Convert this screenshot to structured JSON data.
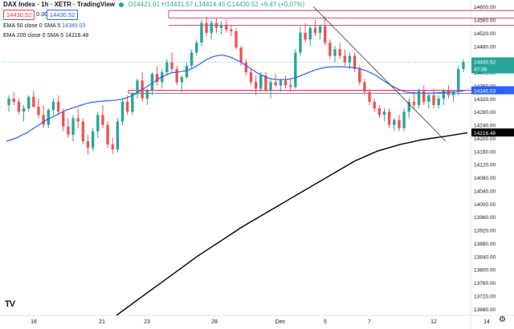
{
  "header": {
    "symbol": "DAX Index · 1h · XETR · TradingView",
    "ohlc_text": "O14421.01 H14431.57 L14414.45 C14430.52 +9.47 (+0.07%)",
    "price_sell": "14430.52",
    "spread": "0.00",
    "price_buy": "14430.52",
    "ema50_label": "EMA 50 close 0 SMA 5",
    "ema50_value": "14345.03",
    "ema200_label": "EMA 200 close 0 SMA 5",
    "ema200_value": "14216.48"
  },
  "price_axis": {
    "ticks": [
      "14600.00",
      "14560.00",
      "14520.00",
      "14480.00",
      "14440.00",
      "14400.00",
      "14360.00",
      "14320.00",
      "14280.00",
      "14240.00",
      "14200.00",
      "14160.00",
      "14120.00",
      "14080.00",
      "14040.00",
      "14000.00",
      "13960.00",
      "13920.00",
      "13880.00",
      "13840.00",
      "13800.00",
      "13760.00",
      "13720.00",
      "13680.00"
    ],
    "last_price_label": "14430.52",
    "countdown_label": "47:36",
    "ema50_label": "14345.03",
    "ema200_label": "14216.48"
  },
  "time_axis": {
    "labels": [
      "16",
      "21",
      "23",
      "28",
      "Dec",
      "5",
      "7",
      "12",
      "14"
    ]
  },
  "logo": "TV",
  "colors": {
    "up": "#26a69a",
    "down": "#ef5350",
    "ema50": "#2962ff",
    "ema200": "#000000",
    "zone": "#c2185b"
  },
  "chart_data": {
    "type": "candlestick",
    "title": "DAX Index · 1h · XETR",
    "ylim": [
      13660,
      14615
    ],
    "x_labels": [
      "16",
      "21",
      "23",
      "28",
      "Dec",
      "5",
      "7",
      "12",
      "14"
    ],
    "candles": [
      [
        14300,
        14330,
        14280,
        14320
      ],
      [
        14320,
        14340,
        14300,
        14310
      ],
      [
        14310,
        14320,
        14270,
        14280
      ],
      [
        14280,
        14300,
        14250,
        14290
      ],
      [
        14290,
        14330,
        14280,
        14325
      ],
      [
        14325,
        14345,
        14290,
        14295
      ],
      [
        14295,
        14320,
        14260,
        14270
      ],
      [
        14270,
        14300,
        14230,
        14240
      ],
      [
        14240,
        14290,
        14230,
        14285
      ],
      [
        14285,
        14320,
        14270,
        14310
      ],
      [
        14310,
        14330,
        14270,
        14280
      ],
      [
        14280,
        14290,
        14220,
        14235
      ],
      [
        14235,
        14260,
        14200,
        14210
      ],
      [
        14210,
        14270,
        14190,
        14260
      ],
      [
        14260,
        14290,
        14230,
        14250
      ],
      [
        14250,
        14260,
        14180,
        14190
      ],
      [
        14190,
        14210,
        14150,
        14170
      ],
      [
        14170,
        14230,
        14160,
        14220
      ],
      [
        14220,
        14280,
        14200,
        14270
      ],
      [
        14270,
        14300,
        14230,
        14240
      ],
      [
        14240,
        14250,
        14170,
        14180
      ],
      [
        14180,
        14200,
        14150,
        14165
      ],
      [
        14165,
        14260,
        14155,
        14250
      ],
      [
        14250,
        14320,
        14240,
        14310
      ],
      [
        14310,
        14330,
        14270,
        14280
      ],
      [
        14280,
        14340,
        14270,
        14335
      ],
      [
        14335,
        14380,
        14320,
        14375
      ],
      [
        14375,
        14400,
        14310,
        14320
      ],
      [
        14320,
        14350,
        14300,
        14345
      ],
      [
        14345,
        14400,
        14330,
        14395
      ],
      [
        14395,
        14420,
        14360,
        14370
      ],
      [
        14370,
        14410,
        14350,
        14400
      ],
      [
        14400,
        14440,
        14390,
        14430
      ],
      [
        14430,
        14460,
        14400,
        14410
      ],
      [
        14410,
        14420,
        14360,
        14370
      ],
      [
        14370,
        14390,
        14340,
        14385
      ],
      [
        14385,
        14430,
        14380,
        14420
      ],
      [
        14420,
        14470,
        14410,
        14460
      ],
      [
        14460,
        14500,
        14450,
        14490
      ],
      [
        14490,
        14560,
        14480,
        14550
      ],
      [
        14550,
        14570,
        14510,
        14520
      ],
      [
        14520,
        14560,
        14500,
        14550
      ],
      [
        14550,
        14565,
        14520,
        14535
      ],
      [
        14535,
        14555,
        14515,
        14545
      ],
      [
        14545,
        14560,
        14520,
        14530
      ],
      [
        14530,
        14545,
        14510,
        14525
      ],
      [
        14525,
        14535,
        14470,
        14475
      ],
      [
        14475,
        14480,
        14420,
        14430
      ],
      [
        14430,
        14440,
        14390,
        14400
      ],
      [
        14400,
        14410,
        14360,
        14370
      ],
      [
        14370,
        14390,
        14330,
        14350
      ],
      [
        14350,
        14400,
        14340,
        14390
      ],
      [
        14390,
        14400,
        14340,
        14345
      ],
      [
        14345,
        14380,
        14320,
        14370
      ],
      [
        14370,
        14395,
        14355,
        14360
      ],
      [
        14360,
        14380,
        14340,
        14375
      ],
      [
        14375,
        14390,
        14350,
        14360
      ],
      [
        14360,
        14380,
        14340,
        14355
      ],
      [
        14355,
        14470,
        14350,
        14460
      ],
      [
        14460,
        14540,
        14450,
        14520
      ],
      [
        14520,
        14550,
        14490,
        14500
      ],
      [
        14500,
        14540,
        14480,
        14535
      ],
      [
        14535,
        14560,
        14510,
        14520
      ],
      [
        14520,
        14545,
        14500,
        14540
      ],
      [
        14540,
        14570,
        14480,
        14490
      ],
      [
        14490,
        14500,
        14440,
        14450
      ],
      [
        14450,
        14480,
        14430,
        14470
      ],
      [
        14470,
        14490,
        14440,
        14450
      ],
      [
        14450,
        14470,
        14420,
        14430
      ],
      [
        14430,
        14460,
        14410,
        14450
      ],
      [
        14450,
        14460,
        14400,
        14410
      ],
      [
        14410,
        14420,
        14360,
        14370
      ],
      [
        14370,
        14380,
        14330,
        14340
      ],
      [
        14340,
        14350,
        14300,
        14310
      ],
      [
        14310,
        14320,
        14280,
        14290
      ],
      [
        14290,
        14300,
        14260,
        14270
      ],
      [
        14270,
        14290,
        14250,
        14280
      ],
      [
        14280,
        14290,
        14230,
        14240
      ],
      [
        14240,
        14260,
        14220,
        14255
      ],
      [
        14255,
        14270,
        14220,
        14230
      ],
      [
        14230,
        14290,
        14220,
        14280
      ],
      [
        14280,
        14320,
        14260,
        14310
      ],
      [
        14310,
        14340,
        14290,
        14300
      ],
      [
        14300,
        14350,
        14290,
        14345
      ],
      [
        14345,
        14360,
        14300,
        14310
      ],
      [
        14310,
        14340,
        14290,
        14330
      ],
      [
        14330,
        14350,
        14290,
        14300
      ],
      [
        14300,
        14330,
        14290,
        14320
      ],
      [
        14320,
        14350,
        14300,
        14345
      ],
      [
        14345,
        14360,
        14320,
        14330
      ],
      [
        14330,
        14345,
        14310,
        14340
      ],
      [
        14340,
        14420,
        14330,
        14410
      ],
      [
        14410,
        14440,
        14400,
        14431
      ]
    ],
    "ema50": [
      14190,
      14195,
      14200,
      14208,
      14215,
      14225,
      14235,
      14245,
      14255,
      14262,
      14270,
      14278,
      14285,
      14290,
      14295,
      14300,
      14305,
      14308,
      14310,
      14312,
      14313,
      14314,
      14315,
      14318,
      14322,
      14328,
      14335,
      14345,
      14355,
      14365,
      14375,
      14385,
      14392,
      14398,
      14400,
      14402,
      14405,
      14410,
      14418,
      14428,
      14438,
      14445,
      14450,
      14452,
      14450,
      14445,
      14438,
      14430,
      14420,
      14410,
      14400,
      14392,
      14385,
      14380,
      14378,
      14377,
      14378,
      14380,
      14384,
      14390,
      14396,
      14402,
      14408,
      14412,
      14415,
      14416,
      14417,
      14417,
      14416,
      14415,
      14413,
      14410,
      14405,
      14398,
      14390,
      14380,
      14370,
      14360,
      14352,
      14345,
      14340,
      14338,
      14337,
      14336,
      14336,
      14336,
      14337,
      14338,
      14339,
      14340,
      14341,
      14342,
      14345
    ],
    "ema200_points": [
      [
        0.22,
        13660
      ],
      [
        0.26,
        13700
      ],
      [
        0.3,
        13740
      ],
      [
        0.35,
        13790
      ],
      [
        0.4,
        13840
      ],
      [
        0.45,
        13885
      ],
      [
        0.5,
        13930
      ],
      [
        0.55,
        13970
      ],
      [
        0.6,
        14010
      ],
      [
        0.65,
        14050
      ],
      [
        0.7,
        14090
      ],
      [
        0.75,
        14130
      ],
      [
        0.8,
        14160
      ],
      [
        0.85,
        14180
      ],
      [
        0.9,
        14195
      ],
      [
        0.95,
        14205
      ],
      [
        1.0,
        14216
      ]
    ],
    "ema200_note": "x as fraction of visible bar index, y in price",
    "zone_lines": [
      14588,
      14565,
      14543,
      14345
    ],
    "trendline": [
      [
        0.52,
        14600
      ],
      [
        0.72,
        14195
      ]
    ]
  }
}
